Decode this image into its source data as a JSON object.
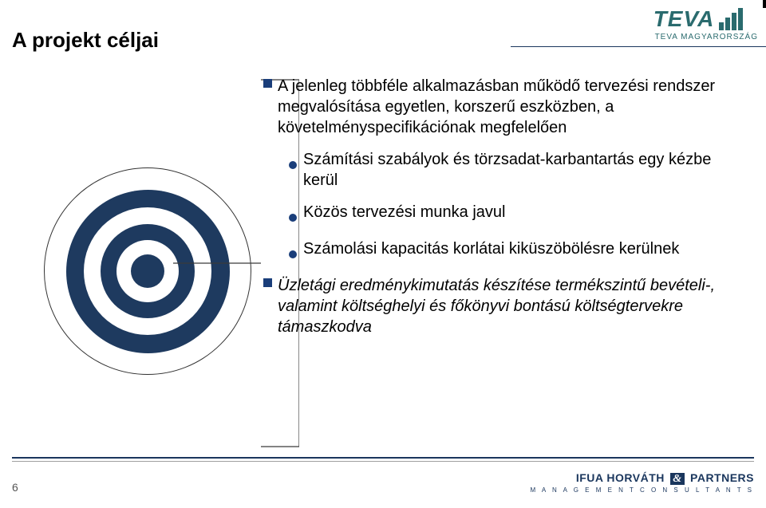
{
  "title": "A projekt céljai",
  "logo": {
    "brand": "TEVA",
    "country": "TEVA MAGYARORSZÁG",
    "brand_color": "#2a6b6e"
  },
  "bullets": [
    {
      "level": 1,
      "text": "A jelenleg többféle alkalmazásban működő tervezési rendszer megvalósítása egyetlen, korszerű eszközben, a követelményspecifikációnak megfelelően"
    },
    {
      "level": 2,
      "text": "Számítási szabályok és törzsadat-karbantartás egy kézbe kerül"
    },
    {
      "level": 2,
      "text": "Közös tervezési munka javul"
    },
    {
      "level": 2,
      "text": "Számolási kapacitás korlátai kiküszöbölésre kerülnek"
    },
    {
      "level": 1,
      "text": "Üzletági eredménykimutatás készítése termékszintű bevételi-, valamint költséghelyi és főkönyvi bontású költségtervekre támaszkodva"
    }
  ],
  "target_rings": [
    {
      "d": 260,
      "fill": "#ffffff",
      "stroke": "#333333"
    },
    {
      "d": 205,
      "fill": "#1e3a5f",
      "stroke": "none"
    },
    {
      "d": 160,
      "fill": "#ffffff",
      "stroke": "none"
    },
    {
      "d": 118,
      "fill": "#1e3a5f",
      "stroke": "none"
    },
    {
      "d": 78,
      "fill": "#ffffff",
      "stroke": "none"
    },
    {
      "d": 42,
      "fill": "#1e3a5f",
      "stroke": "none"
    }
  ],
  "bullet_color": "#1a3e7a",
  "footer": {
    "page": "6",
    "brand1a": "IFUA HORVÁTH",
    "brand1b": "PARTNERS",
    "brand2": "M A N A G E M E N T   C O N S U L T A N T S"
  }
}
